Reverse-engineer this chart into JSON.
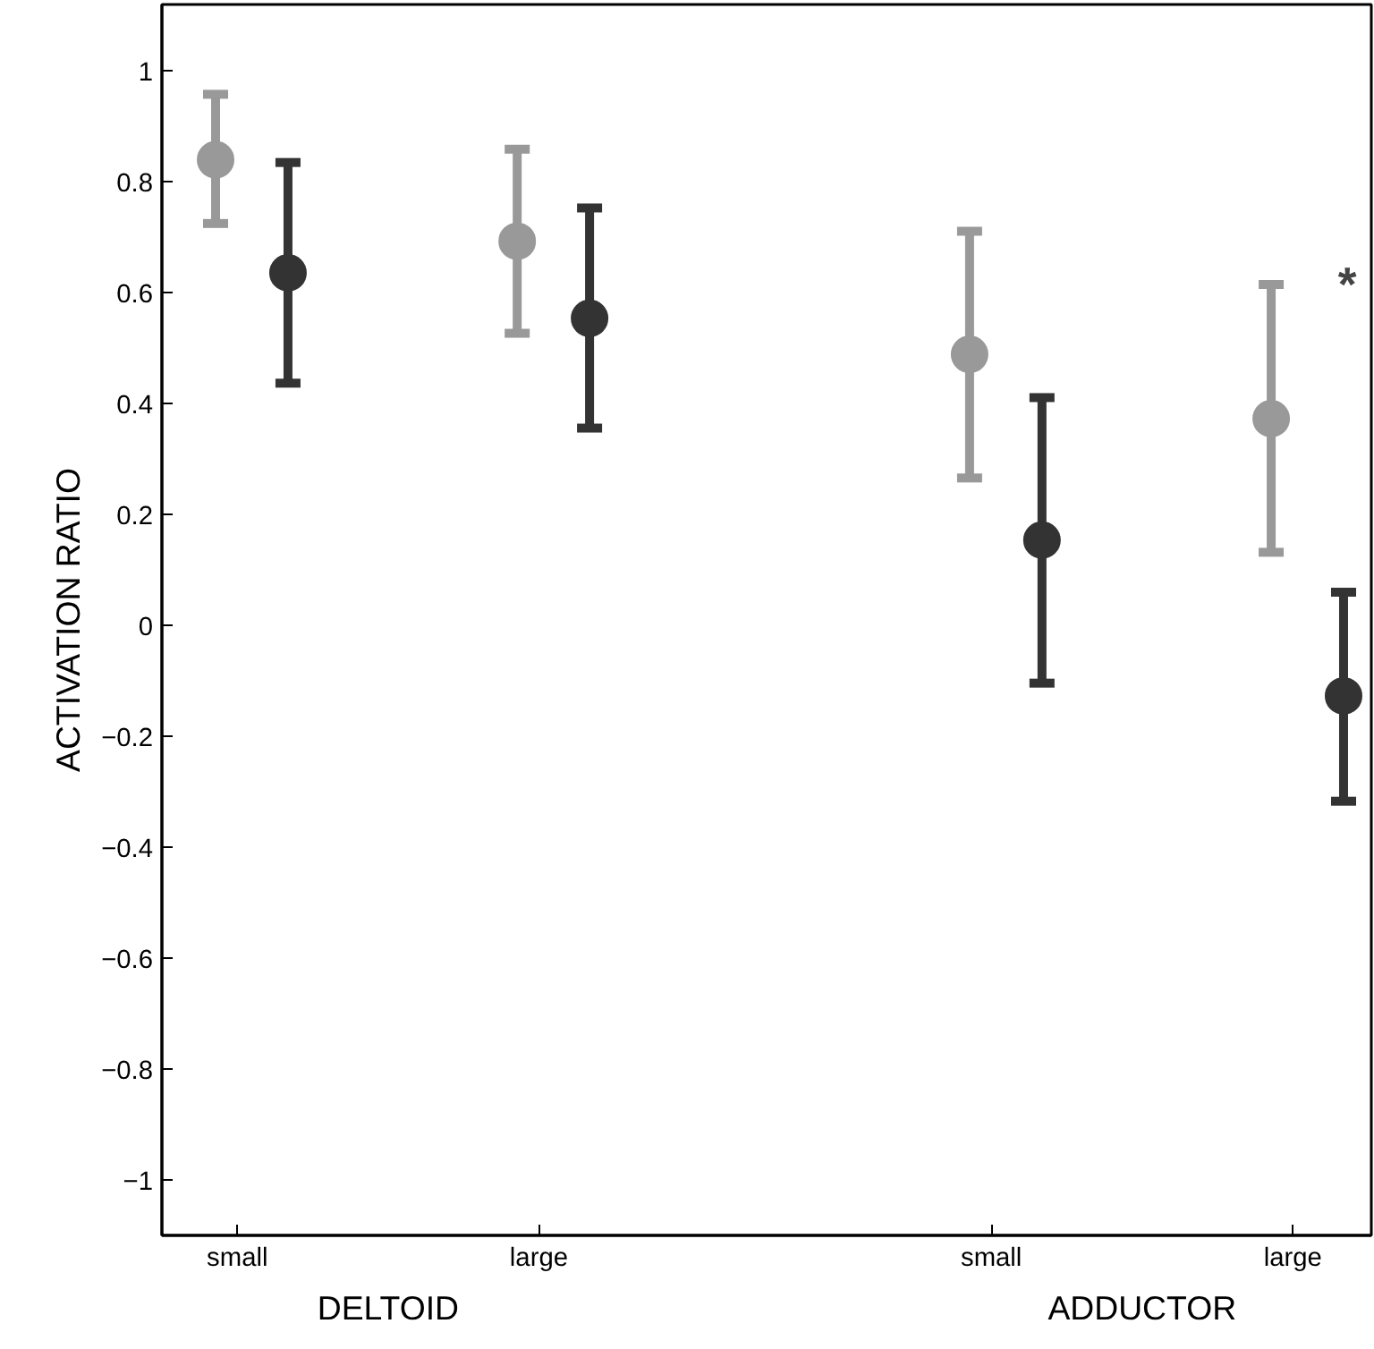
{
  "chart_data": {
    "type": "scatter",
    "ylabel": "ACTIVATION RATIO",
    "marker": "circle",
    "grid": false,
    "categories": [
      "small",
      "large",
      "small",
      "large"
    ],
    "ylim": [
      -1.1,
      1.12
    ],
    "yticks": [
      {
        "value": -1,
        "label": "−1"
      },
      {
        "value": -0.8,
        "label": "−0.8"
      },
      {
        "value": -0.6,
        "label": "−0.6"
      },
      {
        "value": -0.4,
        "label": "−0.4"
      },
      {
        "value": -0.2,
        "label": "−0.2"
      },
      0,
      0.2,
      0.4,
      0.6,
      0.8,
      1
    ],
    "series": [
      {
        "color": "#999999",
        "values": [
          0.84,
          0.693,
          0.489,
          0.373
        ],
        "errors": [
          [
            0.725,
            0.958
          ],
          [
            0.527,
            0.859
          ],
          [
            0.266,
            0.711
          ],
          [
            0.132,
            0.615
          ]
        ]
      },
      {
        "color": "#333333",
        "values": [
          0.636,
          0.554,
          0.154,
          -0.127
        ],
        "errors": [
          [
            0.437,
            0.835
          ],
          [
            0.356,
            0.753
          ],
          [
            -0.104,
            0.411
          ],
          [
            -0.317,
            0.06
          ]
        ]
      }
    ],
    "annotations": [
      "DELTOID",
      "ADDUCTOR",
      "*"
    ]
  }
}
